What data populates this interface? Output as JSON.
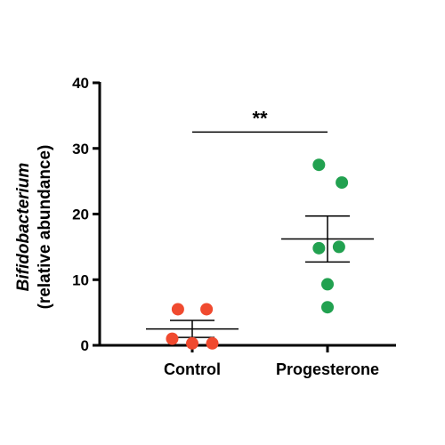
{
  "chart_data": {
    "type": "scatter",
    "ylabel_italic": "Bifidobacterium",
    "ylabel": "(relative abundance)",
    "ylim": [
      0,
      40
    ],
    "yticks": [
      "0",
      "10",
      "20",
      "30",
      "40"
    ],
    "categories": [
      "Control",
      "Progesterone"
    ],
    "colors": {
      "Control": "#f04a2f",
      "Progesterone": "#22a150"
    },
    "points": [
      [
        {
          "x_offset": -0.25,
          "y": 5.5
        },
        {
          "x_offset": 0.25,
          "y": 5.5
        },
        {
          "x_offset": -0.35,
          "y": 1.0
        },
        {
          "x_offset": 0.0,
          "y": 0.3
        },
        {
          "x_offset": 0.35,
          "y": 0.3
        }
      ],
      [
        {
          "x_offset": -0.15,
          "y": 27.5
        },
        {
          "x_offset": 0.25,
          "y": 24.8
        },
        {
          "x_offset": -0.15,
          "y": 14.8
        },
        {
          "x_offset": 0.2,
          "y": 15.0
        },
        {
          "x_offset": 0.0,
          "y": 9.3
        },
        {
          "x_offset": 0.0,
          "y": 5.8
        }
      ]
    ],
    "mean": [
      2.5,
      16.2
    ],
    "sem": [
      1.3,
      3.5
    ],
    "significance": {
      "label": "**",
      "y": 32.5
    }
  }
}
